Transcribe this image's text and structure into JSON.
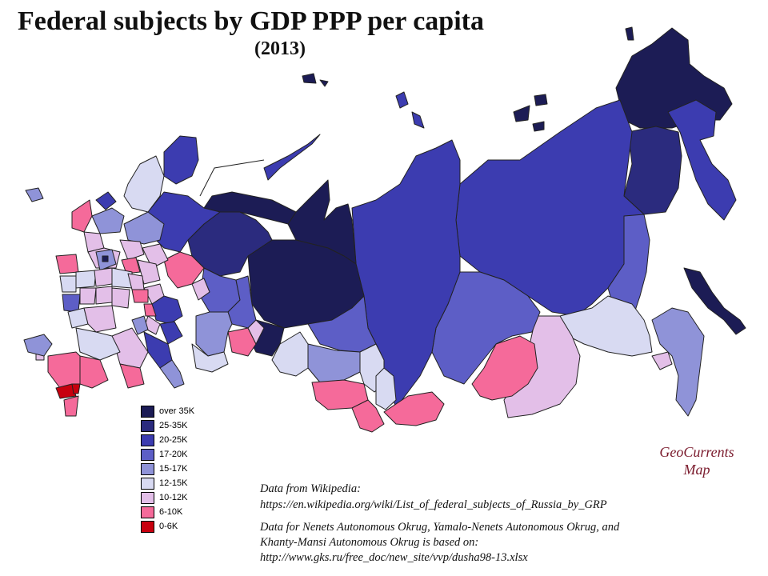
{
  "title": "Federal subjects by GDP PPP per capita",
  "subtitle": "(2013)",
  "colors": {
    "over35": "#1c1c55",
    "c25_35": "#2b2b7e",
    "c20_25": "#3c3cb0",
    "c17_20": "#5d5ec6",
    "c15_17": "#8f93d8",
    "c12_15": "#d8daf2",
    "c10_12": "#e3bfe8",
    "c6_10": "#f56a9a",
    "c0_6": "#c8000e"
  },
  "legend": [
    {
      "label": "over  35K",
      "color": "#1c1c55"
    },
    {
      "label": "25-35K",
      "color": "#2b2b7e"
    },
    {
      "label": "20-25K",
      "color": "#3c3cb0"
    },
    {
      "label": "17-20K",
      "color": "#5d5ec6"
    },
    {
      "label": "15-17K",
      "color": "#8f93d8"
    },
    {
      "label": "12-15K",
      "color": "#d8daf2"
    },
    {
      "label": "10-12K",
      "color": "#e3bfe8"
    },
    {
      "label": "6-10K",
      "color": "#f56a9a"
    },
    {
      "label": "0-6K",
      "color": "#c8000e"
    }
  ],
  "brand": {
    "line1": "GeoCurrents",
    "line2": "Map"
  },
  "source": {
    "line1": "Data from Wikipedia:",
    "line2": "https://en.wikipedia.org/wiki/List_of_federal_subjects_of_Russia_by_GRP",
    "line3": "Data for Nenets Autonomous Okrug, Yamalo-Nenets Autonomous Okrug, and",
    "line4": "Khanty-Mansi Autonomous Okrug is based on:",
    "line5": "http://www.gks.ru/free_doc/new_site/vvp/dusha98-13.xlsx"
  }
}
